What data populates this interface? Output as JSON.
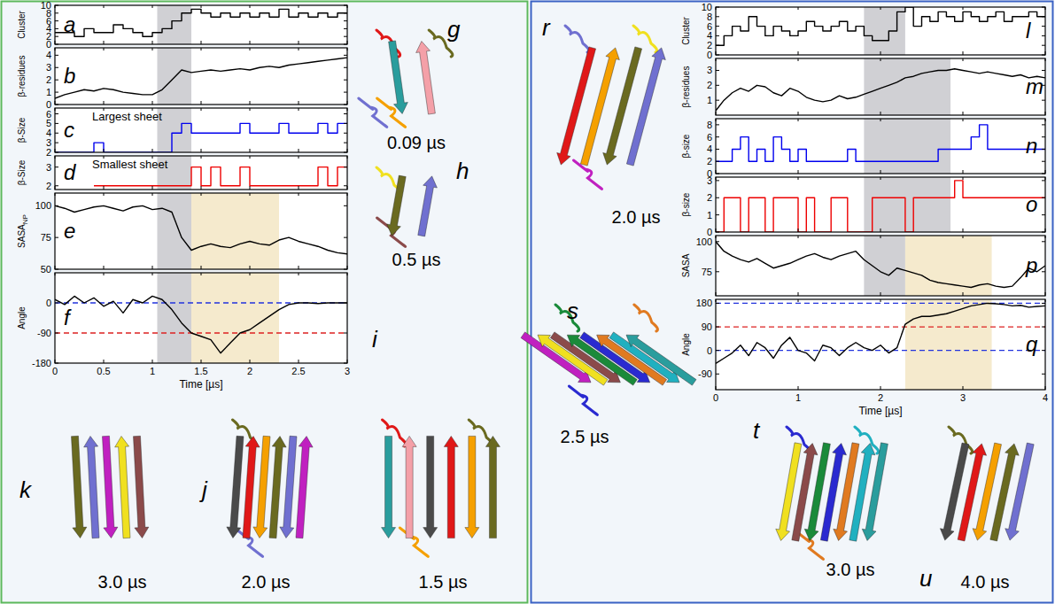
{
  "chart_data": [
    {
      "type": "line",
      "title": "a",
      "y_label": "Cluster",
      "color": "#000000",
      "line_style": "step",
      "tick_labels": "y",
      "x": [
        0,
        0.1,
        0.2,
        0.3,
        0.4,
        0.5,
        0.6,
        0.7,
        0.8,
        0.9,
        1,
        1.1,
        1.2,
        1.3,
        1.4,
        1.5,
        1.6,
        1.7,
        1.8,
        1.9,
        2,
        2.1,
        2.2,
        2.3,
        2.4,
        2.5,
        2.6,
        2.7,
        2.8,
        2.9,
        3
      ],
      "values": [
        3,
        3,
        2,
        4,
        3,
        3,
        5,
        4,
        3,
        2,
        3,
        4,
        6,
        8,
        9,
        8,
        7,
        8,
        7,
        8,
        7,
        8,
        7,
        9,
        7,
        8,
        7,
        8,
        7,
        8,
        8
      ],
      "xlim": [
        0,
        3
      ],
      "xticks": [
        0,
        0.5,
        1,
        1.5,
        2,
        2.5,
        3
      ],
      "ylim": [
        0,
        10
      ],
      "yticks": [
        0,
        2,
        4,
        6,
        8,
        10
      ],
      "bands": [
        {
          "from": 1.05,
          "to": 1.4,
          "color": "#c8c8cc"
        }
      ]
    },
    {
      "type": "line",
      "title": "b",
      "y_label": "β-residues",
      "color": "#000000",
      "line_style": "solid",
      "tick_labels": "y",
      "x": [
        0,
        0.1,
        0.2,
        0.3,
        0.4,
        0.5,
        0.6,
        0.7,
        0.8,
        0.9,
        1,
        1.1,
        1.2,
        1.3,
        1.4,
        1.5,
        1.6,
        1.7,
        1.8,
        1.9,
        2,
        2.1,
        2.2,
        2.3,
        2.4,
        2.5,
        2.6,
        2.7,
        2.8,
        2.9,
        3
      ],
      "values": [
        0.5,
        0.8,
        1.0,
        1.2,
        1.1,
        1.3,
        1.2,
        1.0,
        0.9,
        0.8,
        0.8,
        1.2,
        2.0,
        2.8,
        2.6,
        2.7,
        2.8,
        2.7,
        2.8,
        2.9,
        2.8,
        3.0,
        3.1,
        3.0,
        3.2,
        3.3,
        3.4,
        3.5,
        3.6,
        3.7,
        3.8
      ],
      "xlim": [
        0,
        3
      ],
      "xticks": [
        0,
        0.5,
        1,
        1.5,
        2,
        2.5,
        3
      ],
      "ylim": [
        0,
        4.6
      ],
      "yticks": [
        0,
        1,
        2,
        3,
        4
      ],
      "bands": [
        {
          "from": 1.05,
          "to": 1.4,
          "color": "#c8c8cc"
        }
      ]
    },
    {
      "type": "line",
      "title": "c",
      "annotation": "Largest sheet",
      "y_label": "β-Size",
      "color": "#0000ee",
      "line_style": "step",
      "tick_labels": "y",
      "x": [
        0,
        0.1,
        0.2,
        0.3,
        0.4,
        0.5,
        0.6,
        0.7,
        0.8,
        0.9,
        1,
        1.1,
        1.2,
        1.3,
        1.4,
        1.5,
        1.6,
        1.7,
        1.8,
        1.9,
        2,
        2.1,
        2.2,
        2.3,
        2.4,
        2.5,
        2.6,
        2.7,
        2.8,
        2.9,
        3
      ],
      "values": [
        2,
        2,
        2,
        2,
        3,
        2,
        2,
        2,
        2,
        2,
        2,
        2,
        4,
        5,
        4,
        4,
        4,
        4,
        4,
        5,
        4,
        4,
        4,
        5,
        4,
        4,
        4,
        5,
        4,
        5,
        5
      ],
      "xlim": [
        0,
        3
      ],
      "xticks": [
        0,
        0.5,
        1,
        1.5,
        2,
        2.5,
        3
      ],
      "ylim": [
        2,
        6.6
      ],
      "yticks": [
        2,
        3,
        4,
        5,
        6
      ],
      "bands": [
        {
          "from": 1.05,
          "to": 1.4,
          "color": "#c8c8cc"
        }
      ]
    },
    {
      "type": "line",
      "title": "d",
      "annotation": "Smallest sheet",
      "y_label": "β-Size",
      "color": "#ee0000",
      "line_style": "step",
      "tick_labels": "y",
      "x": [
        0,
        0.1,
        0.2,
        0.3,
        0.4,
        0.5,
        0.6,
        0.7,
        0.8,
        0.9,
        1,
        1.1,
        1.2,
        1.3,
        1.4,
        1.5,
        1.6,
        1.7,
        1.8,
        1.9,
        2,
        2.1,
        2.2,
        2.3,
        2.4,
        2.5,
        2.6,
        2.7,
        2.8,
        2.9,
        3
      ],
      "values": [
        null,
        null,
        null,
        null,
        2,
        2,
        2,
        2,
        2,
        2,
        2,
        2,
        2,
        2,
        3,
        2,
        3,
        2,
        2,
        3,
        2,
        2,
        2,
        2,
        2,
        2,
        2,
        3,
        2,
        3,
        3
      ],
      "xlim": [
        0,
        3
      ],
      "xticks": [
        0,
        0.5,
        1,
        1.5,
        2,
        2.5,
        3
      ],
      "ylim": [
        1.8,
        3.6
      ],
      "yticks": [
        2,
        3
      ],
      "bands": [
        {
          "from": 1.05,
          "to": 1.4,
          "color": "#c8c8cc"
        }
      ]
    },
    {
      "type": "line",
      "title": "e",
      "y_label": "SASA",
      "y_label_sub": "NP",
      "color": "#000000",
      "line_style": "solid",
      "tick_labels": "y",
      "x": [
        0,
        0.1,
        0.2,
        0.3,
        0.4,
        0.5,
        0.6,
        0.7,
        0.8,
        0.9,
        1,
        1.1,
        1.2,
        1.3,
        1.4,
        1.5,
        1.6,
        1.7,
        1.8,
        1.9,
        2,
        2.1,
        2.2,
        2.3,
        2.4,
        2.5,
        2.6,
        2.7,
        2.8,
        2.9,
        3
      ],
      "values": [
        100,
        98,
        95,
        97,
        99,
        100,
        98,
        96,
        99,
        100,
        97,
        98,
        95,
        75,
        65,
        68,
        70,
        68,
        67,
        70,
        72,
        70,
        69,
        73,
        75,
        72,
        70,
        68,
        65,
        63,
        62
      ],
      "xlim": [
        0,
        3
      ],
      "xticks": [
        0,
        0.5,
        1,
        1.5,
        2,
        2.5,
        3
      ],
      "ylim": [
        50,
        110
      ],
      "yticks": [
        50,
        75,
        100
      ],
      "bands": [
        {
          "from": 1.05,
          "to": 1.4,
          "color": "#c8c8cc"
        },
        {
          "from": 1.4,
          "to": 2.3,
          "color": "#f3e6c4"
        }
      ]
    },
    {
      "type": "line",
      "title": "f",
      "y_label": "Angle",
      "x_label": "Time [µs]",
      "color": "#000000",
      "line_style": "solid",
      "x": [
        0,
        0.1,
        0.2,
        0.3,
        0.4,
        0.5,
        0.6,
        0.7,
        0.8,
        0.9,
        1,
        1.1,
        1.2,
        1.3,
        1.4,
        1.5,
        1.6,
        1.7,
        1.8,
        1.9,
        2,
        2.1,
        2.2,
        2.3,
        2.4,
        2.5,
        2.6,
        2.7,
        2.8,
        2.9,
        3
      ],
      "values": [
        10,
        -5,
        20,
        0,
        15,
        -10,
        5,
        -30,
        10,
        0,
        20,
        10,
        -20,
        -60,
        -90,
        -100,
        -110,
        -150,
        -120,
        -90,
        -80,
        -60,
        -40,
        -20,
        -5,
        0,
        0,
        -2,
        0,
        0,
        0
      ],
      "xlim": [
        0,
        3
      ],
      "xticks": [
        0,
        0.5,
        1,
        1.5,
        2,
        2.5,
        3
      ],
      "ylim": [
        -180,
        90
      ],
      "yticks": [
        -180,
        -90,
        0
      ],
      "bands": [
        {
          "from": 1.05,
          "to": 1.4,
          "color": "#c8c8cc"
        },
        {
          "from": 1.4,
          "to": 2.3,
          "color": "#f3e6c4"
        }
      ],
      "ref_lines": [
        {
          "value": 0,
          "color": "#2233dd"
        },
        {
          "value": -90,
          "color": "#dd2222"
        }
      ]
    },
    {
      "type": "line",
      "title": "l",
      "y_label": "Cluster",
      "color": "#000000",
      "line_style": "step",
      "tick_labels": "y",
      "x": [
        0,
        0.1,
        0.2,
        0.3,
        0.4,
        0.5,
        0.6,
        0.7,
        0.8,
        0.9,
        1,
        1.1,
        1.2,
        1.3,
        1.4,
        1.5,
        1.6,
        1.7,
        1.8,
        1.9,
        2,
        2.1,
        2.2,
        2.3,
        2.4,
        2.5,
        2.6,
        2.7,
        2.8,
        2.9,
        3,
        3.1,
        3.2,
        3.3,
        3.4,
        3.5,
        3.6,
        3.7,
        3.8,
        3.9,
        4
      ],
      "values": [
        2,
        4,
        6,
        5,
        8,
        6,
        4,
        6,
        5,
        4,
        5,
        7,
        6,
        5,
        6,
        7,
        5,
        6,
        4,
        3,
        3,
        5,
        9,
        10,
        6,
        8,
        7,
        9,
        8,
        7,
        9,
        8,
        7,
        8,
        9,
        7,
        8,
        8,
        9,
        8,
        8
      ],
      "xlim": [
        0,
        4
      ],
      "xticks": [
        0,
        1,
        2,
        3,
        4
      ],
      "ylim": [
        0,
        10
      ],
      "yticks": [
        0,
        2,
        4,
        6,
        8,
        10
      ],
      "bands": [
        {
          "from": 1.8,
          "to": 2.3,
          "color": "#c8c8cc"
        }
      ]
    },
    {
      "type": "line",
      "title": "m",
      "y_label": "β-residues",
      "color": "#000000",
      "line_style": "solid",
      "tick_labels": "y",
      "x": [
        0,
        0.1,
        0.2,
        0.3,
        0.4,
        0.5,
        0.6,
        0.7,
        0.8,
        0.9,
        1,
        1.1,
        1.2,
        1.3,
        1.4,
        1.5,
        1.6,
        1.7,
        1.8,
        1.9,
        2,
        2.1,
        2.2,
        2.3,
        2.4,
        2.5,
        2.6,
        2.7,
        2.8,
        2.9,
        3,
        3.1,
        3.2,
        3.3,
        3.4,
        3.5,
        3.6,
        3.7,
        3.8,
        3.9,
        4
      ],
      "values": [
        0.3,
        1.0,
        1.5,
        1.8,
        1.6,
        2.0,
        1.9,
        1.5,
        1.3,
        1.8,
        1.6,
        1.2,
        1.0,
        0.9,
        1.0,
        1.3,
        1.1,
        1.2,
        1.4,
        1.6,
        1.8,
        2.0,
        2.2,
        2.5,
        2.6,
        2.8,
        2.9,
        3.0,
        3.0,
        3.1,
        3.0,
        2.9,
        2.8,
        2.9,
        2.8,
        2.7,
        2.6,
        2.7,
        2.5,
        2.6,
        2.5
      ],
      "xlim": [
        0,
        4
      ],
      "xticks": [
        0,
        1,
        2,
        3,
        4
      ],
      "ylim": [
        0,
        3.8
      ],
      "yticks": [
        1,
        2,
        3
      ],
      "bands": [
        {
          "from": 1.8,
          "to": 2.85,
          "color": "#c8c8cc"
        }
      ]
    },
    {
      "type": "line",
      "title": "n",
      "y_label": "β-size",
      "color": "#0000ee",
      "line_style": "step",
      "tick_labels": "y",
      "x": [
        0,
        0.1,
        0.2,
        0.3,
        0.4,
        0.5,
        0.6,
        0.7,
        0.8,
        0.9,
        1,
        1.1,
        1.2,
        1.3,
        1.4,
        1.5,
        1.6,
        1.7,
        1.8,
        1.9,
        2,
        2.1,
        2.2,
        2.3,
        2.4,
        2.5,
        2.6,
        2.7,
        2.8,
        2.9,
        3,
        3.1,
        3.2,
        3.3,
        3.4,
        3.5,
        3.6,
        3.7,
        3.8,
        3.9,
        4
      ],
      "values": [
        2,
        2,
        4,
        6,
        2,
        4,
        2,
        6,
        4,
        2,
        4,
        2,
        2,
        2,
        2,
        2,
        4,
        2,
        2,
        2,
        2,
        2,
        2,
        2,
        2,
        2,
        2,
        4,
        4,
        4,
        4,
        6,
        8,
        4,
        4,
        4,
        4,
        4,
        4,
        4,
        4
      ],
      "xlim": [
        0,
        4
      ],
      "xticks": [
        0,
        1,
        2,
        3,
        4
      ],
      "ylim": [
        0,
        9
      ],
      "yticks": [
        0,
        2,
        4,
        6,
        8
      ],
      "bands": [
        {
          "from": 1.8,
          "to": 2.85,
          "color": "#c8c8cc"
        }
      ]
    },
    {
      "type": "line",
      "title": "o",
      "y_label": "β-size",
      "color": "#ee0000",
      "line_style": "step",
      "tick_labels": "y",
      "x": [
        0,
        0.1,
        0.2,
        0.3,
        0.4,
        0.5,
        0.6,
        0.7,
        0.8,
        0.9,
        1,
        1.1,
        1.2,
        1.3,
        1.4,
        1.5,
        1.6,
        1.7,
        1.8,
        1.9,
        2,
        2.1,
        2.2,
        2.3,
        2.4,
        2.5,
        2.6,
        2.7,
        2.8,
        2.9,
        3,
        3.1,
        3.2,
        3.3,
        3.4,
        3.5,
        3.6,
        3.7,
        3.8,
        3.9,
        4
      ],
      "values": [
        0,
        2,
        2,
        0,
        2,
        2,
        0,
        2,
        2,
        2,
        0,
        2,
        0,
        0,
        2,
        2,
        0,
        0,
        0,
        2,
        2,
        2,
        2,
        0,
        2,
        2,
        2,
        2,
        2,
        3,
        2,
        2,
        2,
        2,
        2,
        2,
        2,
        2,
        2,
        2,
        2
      ],
      "xlim": [
        0,
        4
      ],
      "xticks": [
        0,
        1,
        2,
        3,
        4
      ],
      "ylim": [
        0,
        3.2
      ],
      "yticks": [
        0,
        1,
        2,
        3
      ],
      "bands": [
        {
          "from": 1.8,
          "to": 2.85,
          "color": "#c8c8cc"
        }
      ]
    },
    {
      "type": "line",
      "title": "p",
      "y_label": "SASA",
      "color": "#000000",
      "line_style": "solid",
      "tick_labels": "y",
      "x": [
        0,
        0.1,
        0.2,
        0.3,
        0.4,
        0.5,
        0.6,
        0.7,
        0.8,
        0.9,
        1,
        1.1,
        1.2,
        1.3,
        1.4,
        1.5,
        1.6,
        1.7,
        1.8,
        1.9,
        2,
        2.1,
        2.2,
        2.3,
        2.4,
        2.5,
        2.6,
        2.7,
        2.8,
        2.9,
        3,
        3.1,
        3.2,
        3.3,
        3.4,
        3.5,
        3.6,
        3.7,
        3.8,
        3.9,
        4
      ],
      "values": [
        100,
        92,
        88,
        85,
        83,
        86,
        82,
        78,
        80,
        82,
        85,
        88,
        90,
        87,
        85,
        88,
        90,
        92,
        85,
        80,
        75,
        72,
        78,
        76,
        74,
        72,
        68,
        66,
        65,
        64,
        63,
        62,
        64,
        65,
        63,
        62,
        63,
        70,
        78,
        75,
        80
      ],
      "xlim": [
        0,
        4
      ],
      "xticks": [
        0,
        1,
        2,
        3,
        4
      ],
      "ylim": [
        55,
        105
      ],
      "yticks": [
        75,
        100
      ],
      "bands": [
        {
          "from": 1.8,
          "to": 2.3,
          "color": "#c8c8cc"
        },
        {
          "from": 2.3,
          "to": 3.35,
          "color": "#f3e6c4"
        }
      ]
    },
    {
      "type": "line",
      "title": "q",
      "y_label": "Angle",
      "x_label": "Time [µs]",
      "color": "#000000",
      "line_style": "solid",
      "x": [
        0,
        0.1,
        0.2,
        0.3,
        0.4,
        0.5,
        0.6,
        0.7,
        0.8,
        0.9,
        1,
        1.1,
        1.2,
        1.3,
        1.4,
        1.5,
        1.6,
        1.7,
        1.8,
        1.9,
        2,
        2.1,
        2.2,
        2.3,
        2.4,
        2.5,
        2.6,
        2.7,
        2.8,
        2.9,
        3,
        3.1,
        3.2,
        3.3,
        3.4,
        3.5,
        3.6,
        3.7,
        3.8,
        3.9,
        4
      ],
      "values": [
        -50,
        -30,
        -10,
        20,
        -20,
        30,
        10,
        -30,
        20,
        50,
        0,
        -10,
        -40,
        20,
        10,
        -20,
        10,
        30,
        10,
        0,
        20,
        -10,
        10,
        100,
        120,
        130,
        130,
        135,
        140,
        150,
        160,
        170,
        175,
        180,
        178,
        175,
        170,
        172,
        165,
        168,
        170
      ],
      "xlim": [
        0,
        4
      ],
      "xticks": [
        0,
        1,
        2,
        3,
        4
      ],
      "ylim": [
        -150,
        195
      ],
      "yticks": [
        -90,
        0,
        90,
        180
      ],
      "bands": [
        {
          "from": 2.3,
          "to": 3.35,
          "color": "#f3e6c4"
        }
      ],
      "ref_lines": [
        {
          "value": 0,
          "color": "#2233dd"
        },
        {
          "value": 90,
          "color": "#dd2222"
        },
        {
          "value": 180,
          "color": "#2233dd"
        }
      ]
    }
  ],
  "snapshots": [
    {
      "letter": "g",
      "time": "0.09 µs"
    },
    {
      "letter": "h",
      "time": "0.5 µs"
    },
    {
      "letter": "i",
      "time": "1.5 µs"
    },
    {
      "letter": "j",
      "time": "2.0 µs"
    },
    {
      "letter": "k",
      "time": "3.0 µs"
    },
    {
      "letter": "r",
      "time": "2.0 µs"
    },
    {
      "letter": "s",
      "time": "2.5 µs"
    },
    {
      "letter": "t",
      "time": "3.0 µs"
    },
    {
      "letter": "u",
      "time": "4.0 µs"
    }
  ]
}
